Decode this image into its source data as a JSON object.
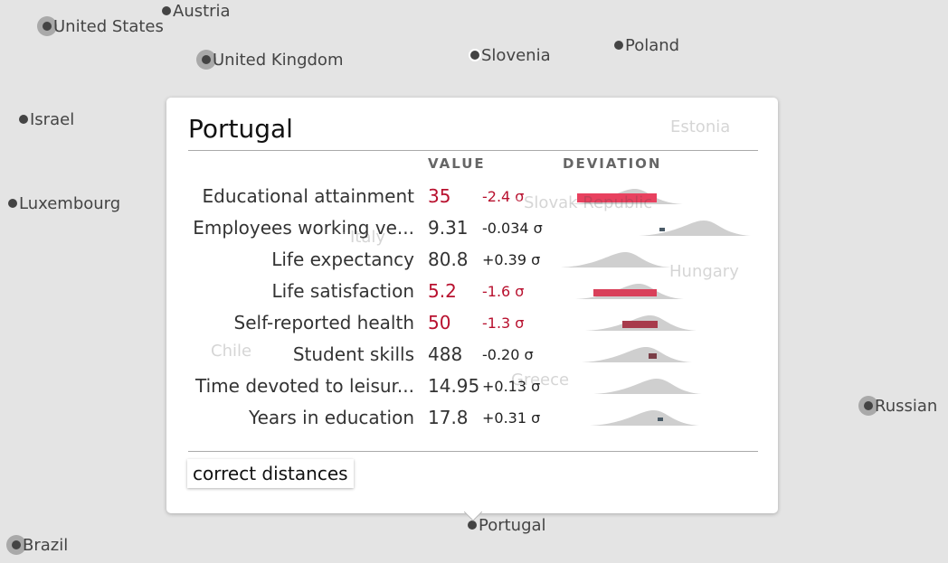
{
  "countries": [
    {
      "name": "United States"
    },
    {
      "name": "Austria"
    },
    {
      "name": "United Kingdom"
    },
    {
      "name": "Slovenia"
    },
    {
      "name": "Poland"
    },
    {
      "name": "Israel"
    },
    {
      "name": "Luxembourg"
    },
    {
      "name": "Russian"
    },
    {
      "name": "Brazil"
    },
    {
      "name": "Portugal"
    },
    {
      "name": "Estonia"
    },
    {
      "name": "Slovak Republic"
    },
    {
      "name": "Italy"
    },
    {
      "name": "Hungary"
    },
    {
      "name": "Chile"
    },
    {
      "name": "Greece"
    }
  ],
  "tooltip": {
    "title": "Portugal",
    "headers": {
      "value": "VALUE",
      "deviation": "DEVIATION"
    },
    "rows": [
      {
        "label": "Educational attainment",
        "value": 35,
        "deviation": "-2.4 σ"
      },
      {
        "label": "Employees working ve...",
        "value": 9.31,
        "deviation": "-0.034 σ"
      },
      {
        "label": "Life expectancy",
        "value": 80.8,
        "deviation": "+0.39 σ"
      },
      {
        "label": "Life satisfaction",
        "value": 5.2,
        "deviation": "-1.6 σ"
      },
      {
        "label": "Self-reported health",
        "value": 50,
        "deviation": "-1.3 σ"
      },
      {
        "label": "Student skills",
        "value": 488,
        "deviation": "-0.20 σ"
      },
      {
        "label": "Time devoted to leisur...",
        "value": 14.95,
        "deviation": "+0.13 σ"
      },
      {
        "label": "Years in education",
        "value": 17.8,
        "deviation": "+0.31 σ"
      }
    ],
    "button": "correct distances"
  }
}
